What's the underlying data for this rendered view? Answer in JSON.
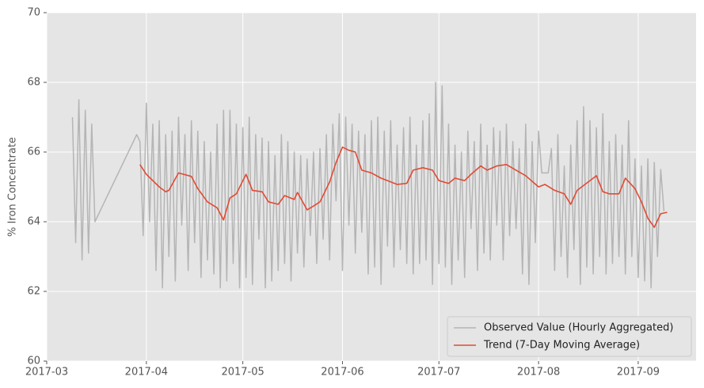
{
  "chart_data": {
    "type": "line",
    "ylabel": "% Iron Concentrate",
    "xlim": [
      59,
      261
    ],
    "ylim": [
      60,
      70
    ],
    "xticks": [
      {
        "value": 59,
        "label": "2017-03"
      },
      {
        "value": 90,
        "label": "2017-04"
      },
      {
        "value": 120,
        "label": "2017-05"
      },
      {
        "value": 151,
        "label": "2017-06"
      },
      {
        "value": 181,
        "label": "2017-07"
      },
      {
        "value": 212,
        "label": "2017-08"
      },
      {
        "value": 243,
        "label": "2017-09"
      }
    ],
    "yticks": [
      60,
      62,
      64,
      66,
      68,
      70
    ],
    "grid": true,
    "legend": "lower right",
    "series": [
      {
        "name": "Observed Value (Hourly Aggregated)",
        "color": "#b5b5b5",
        "x": [
          67,
          68,
          69,
          70,
          71,
          72,
          73,
          74,
          87,
          88,
          89,
          90,
          91,
          92,
          93,
          94,
          95,
          96,
          97,
          98,
          99,
          100,
          101,
          102,
          103,
          104,
          105,
          106,
          107,
          108,
          109,
          110,
          111,
          112,
          113,
          114,
          115,
          116,
          117,
          118,
          119,
          120,
          121,
          122,
          123,
          124,
          125,
          126,
          127,
          128,
          129,
          130,
          131,
          132,
          133,
          134,
          135,
          136,
          137,
          138,
          139,
          140,
          141,
          142,
          143,
          144,
          145,
          146,
          147,
          148,
          149,
          150,
          151,
          152,
          153,
          154,
          155,
          156,
          157,
          158,
          159,
          160,
          161,
          162,
          163,
          164,
          165,
          166,
          167,
          168,
          169,
          170,
          171,
          172,
          173,
          174,
          175,
          176,
          177,
          178,
          179,
          180,
          181,
          182,
          183,
          184,
          185,
          186,
          187,
          188,
          189,
          190,
          191,
          192,
          193,
          194,
          195,
          196,
          197,
          198,
          199,
          200,
          201,
          202,
          203,
          204,
          205,
          206,
          207,
          208,
          209,
          210,
          211,
          212,
          213,
          214,
          215,
          216,
          217,
          218,
          219,
          220,
          221,
          222,
          223,
          224,
          225,
          226,
          227,
          228,
          229,
          230,
          231,
          232,
          233,
          234,
          235,
          236,
          237,
          238,
          239,
          240,
          241,
          242,
          243,
          244,
          245,
          246,
          247,
          248,
          249,
          250,
          251
        ],
        "values": [
          67.0,
          63.4,
          67.5,
          62.9,
          67.2,
          63.1,
          66.8,
          64.0,
          66.5,
          66.3,
          63.6,
          67.4,
          64.0,
          66.8,
          62.6,
          66.9,
          62.1,
          66.5,
          63.0,
          66.6,
          62.3,
          67.0,
          63.9,
          66.5,
          62.6,
          66.9,
          63.4,
          66.6,
          62.4,
          66.3,
          62.9,
          66.0,
          62.5,
          66.8,
          62.1,
          67.2,
          62.3,
          67.2,
          62.8,
          66.8,
          62.1,
          66.7,
          62.4,
          67.0,
          62.2,
          66.5,
          63.5,
          66.4,
          62.1,
          66.3,
          62.3,
          65.9,
          62.6,
          66.5,
          62.8,
          66.3,
          62.3,
          66.0,
          63.1,
          65.9,
          62.7,
          65.8,
          63.6,
          66.0,
          62.8,
          66.1,
          63.5,
          66.5,
          62.9,
          66.8,
          64.6,
          67.1,
          62.6,
          67.0,
          63.9,
          66.8,
          63.1,
          66.6,
          63.7,
          66.5,
          62.5,
          66.9,
          62.7,
          67.0,
          62.2,
          66.6,
          63.3,
          66.9,
          62.7,
          66.2,
          63.2,
          66.7,
          62.8,
          67.0,
          62.5,
          66.2,
          62.8,
          66.9,
          62.9,
          67.1,
          62.2,
          68.0,
          62.8,
          67.9,
          62.7,
          66.8,
          62.2,
          66.2,
          62.9,
          66.0,
          62.4,
          66.6,
          63.8,
          66.3,
          62.6,
          66.8,
          63.1,
          66.2,
          62.9,
          66.7,
          63.9,
          66.6,
          62.9,
          66.8,
          63.6,
          66.3,
          63.8,
          66.1,
          62.5,
          66.8,
          62.2,
          66.3,
          63.4,
          66.6,
          65.4,
          65.4,
          65.4,
          66.1,
          62.6,
          66.5,
          63.0,
          65.6,
          62.4,
          66.2,
          63.2,
          66.9,
          62.2,
          67.3,
          62.7,
          66.9,
          62.5,
          66.7,
          63.0,
          67.1,
          62.5,
          66.3,
          62.8,
          66.5,
          63.0,
          66.2,
          62.5,
          66.9,
          63.0,
          65.8,
          62.4,
          65.6,
          62.3,
          65.8,
          62.1,
          65.7,
          63.0,
          65.5,
          64.3
        ]
      },
      {
        "name": "Trend (7-Day Moving Average)",
        "color": "#e24a33",
        "x": [
          88,
          90,
          94,
          96,
          97,
          100,
          104,
          106,
          109,
          112,
          114,
          116,
          118,
          121,
          123,
          126,
          128,
          131,
          133,
          136,
          137,
          140,
          142,
          144,
          147,
          149,
          151,
          153,
          155,
          157,
          160,
          163,
          165,
          168,
          171,
          173,
          176,
          179,
          181,
          184,
          186,
          189,
          191,
          194,
          196,
          199,
          202,
          205,
          208,
          212,
          214,
          217,
          220,
          222,
          224,
          228,
          230,
          232,
          234,
          237,
          239,
          242,
          244,
          246,
          248,
          250,
          252
        ],
        "values": [
          65.64,
          65.36,
          65.0,
          64.86,
          64.9,
          65.4,
          65.3,
          64.95,
          64.57,
          64.4,
          64.05,
          64.68,
          64.8,
          65.36,
          64.9,
          64.86,
          64.57,
          64.5,
          64.75,
          64.64,
          64.84,
          64.34,
          64.45,
          64.57,
          65.14,
          65.7,
          66.14,
          66.05,
          66.0,
          65.48,
          65.4,
          65.25,
          65.18,
          65.07,
          65.1,
          65.48,
          65.55,
          65.48,
          65.18,
          65.1,
          65.25,
          65.18,
          65.36,
          65.6,
          65.48,
          65.6,
          65.64,
          65.48,
          65.32,
          65.0,
          65.07,
          64.9,
          64.8,
          64.5,
          64.9,
          65.18,
          65.32,
          64.86,
          64.8,
          64.8,
          65.25,
          64.95,
          64.57,
          64.1,
          63.84,
          64.23,
          64.27
        ]
      }
    ]
  }
}
